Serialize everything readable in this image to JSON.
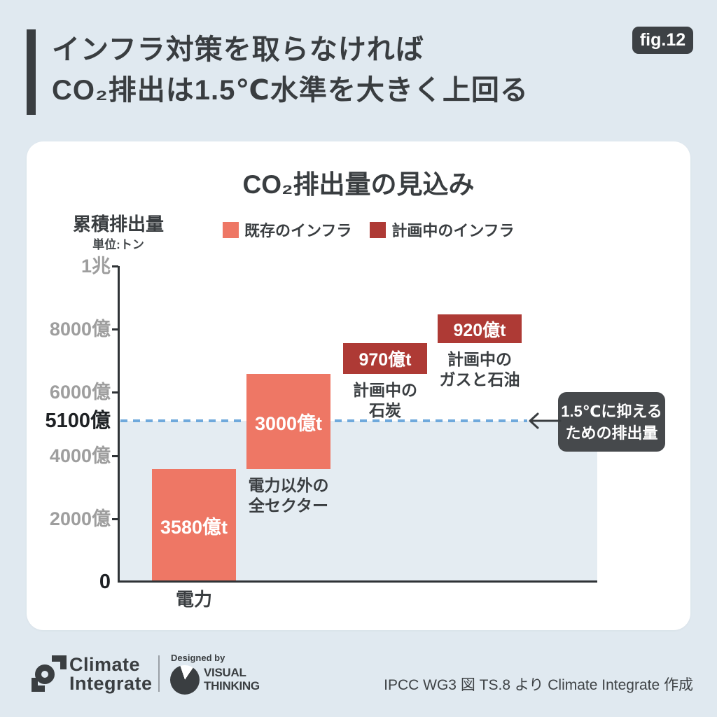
{
  "fig_badge": {
    "label": "fig.12"
  },
  "header": {
    "title_line1": "インフラ対策を取らなければ",
    "title_line2": "CO₂排出は1.5℃水準を大きく上回る"
  },
  "chart_data": {
    "type": "bar",
    "subtype": "waterfall",
    "title": "CO₂排出量の見込み",
    "ylabel": "累積排出量",
    "unit": "単位:トン",
    "ylim_oku_tons": [
      0,
      10000
    ],
    "grid": false,
    "legend_position": "top",
    "yticks": [
      {
        "label": "1兆",
        "value": 10000,
        "emphasis": false,
        "tick": true
      },
      {
        "label": "8000億",
        "value": 8000,
        "emphasis": false,
        "tick": true
      },
      {
        "label": "6000億",
        "value": 6000,
        "emphasis": false,
        "tick": true
      },
      {
        "label": "5100億",
        "value": 5100,
        "emphasis": true,
        "tick": false
      },
      {
        "label": "4000億",
        "value": 4000,
        "emphasis": false,
        "tick": true
      },
      {
        "label": "2000億",
        "value": 2000,
        "emphasis": false,
        "tick": true
      },
      {
        "label": "0",
        "value": 0,
        "emphasis": true,
        "tick": false
      }
    ],
    "series": [
      {
        "name": "既存のインフラ",
        "color": "#EE7765"
      },
      {
        "name": "計画中のインフラ",
        "color": "#AE3A35"
      }
    ],
    "bars": [
      {
        "category": "電力",
        "value_oku": 3580,
        "value_label": "3580億t",
        "start_oku": 0,
        "end_oku": 3580,
        "series": "既存のインフラ",
        "caption_lines": [
          "電力"
        ]
      },
      {
        "category": "電力以外の全セクター",
        "value_oku": 3000,
        "value_label": "3000億t",
        "start_oku": 3580,
        "end_oku": 6580,
        "series": "既存のインフラ",
        "caption_lines": [
          "電力以外の",
          "全セクター"
        ]
      },
      {
        "category": "計画中の石炭",
        "value_oku": 970,
        "value_label": "970億t",
        "start_oku": 6580,
        "end_oku": 7550,
        "series": "計画中のインフラ",
        "caption_lines": [
          "計画中の",
          "石炭"
        ]
      },
      {
        "category": "計画中のガスと石油",
        "value_oku": 920,
        "value_label": "920億t",
        "start_oku": 7550,
        "end_oku": 8470,
        "series": "計画中のインフラ",
        "caption_lines": [
          "計画中の",
          "ガスと石油"
        ]
      }
    ],
    "reference_line": {
      "value_oku": 5100,
      "label": "5100億",
      "color": "#6FA9DC",
      "annotation_lines": [
        "1.5℃に抑える",
        "ための排出量"
      ]
    }
  },
  "footer": {
    "brand_line1": "Climate",
    "brand_line2": "Integrate",
    "designed_by": "Designed by",
    "vt_line1": "VISUAL",
    "vt_line2": "THINKING",
    "source": "IPCC WG3 図 TS.8 より Climate Integrate 作成"
  },
  "colors": {
    "page_bg": "#E0E9F0",
    "card_bg": "#FFFFFF",
    "dark_text": "#3A3E41",
    "existing_infra": "#EE7765",
    "planned_infra": "#AE3A35",
    "reference_blue": "#6FA9DC",
    "shaded_area": "#E4ECF2"
  }
}
